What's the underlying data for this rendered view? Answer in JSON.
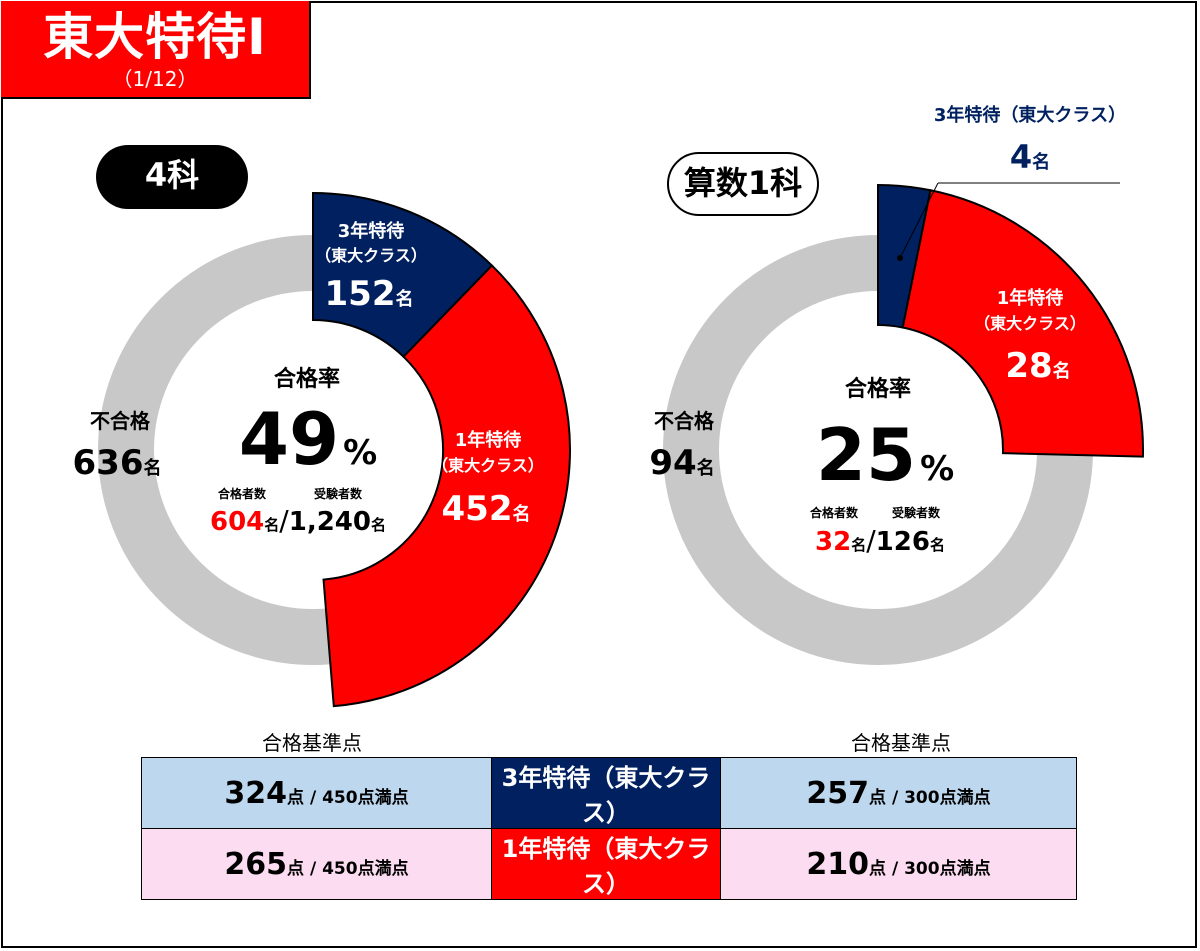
{
  "title": {
    "main": "東大特待Ⅰ",
    "sub": "（1/12）"
  },
  "colors": {
    "red": "#ff0000",
    "navy": "#002060",
    "gray": "#c8c8c8",
    "blue_cell": "#bdd7ee",
    "pink_cell": "#fcdcf0"
  },
  "chart_data": [
    {
      "type": "pie",
      "label": "4科",
      "center": {
        "title": "合格率",
        "rate": "49",
        "rate_unit": "%",
        "passers_label": "合格者数",
        "examinees_label": "受験者数",
        "passers": "604",
        "examinees": "1,240",
        "unit": "名",
        "sep": "/"
      },
      "segments": [
        {
          "name_line1": "3年特待",
          "name_line2": "（東大クラス）",
          "value": 152,
          "value_text": "152",
          "unit": "名",
          "color": "#002060"
        },
        {
          "name_line1": "1年特待",
          "name_line2": "（東大クラス）",
          "value": 452,
          "value_text": "452",
          "unit": "名",
          "color": "#ff0000"
        },
        {
          "name_line1": "不合格",
          "value": 636,
          "value_text": "636",
          "unit": "名",
          "color": "#c8c8c8"
        }
      ],
      "total": 1240
    },
    {
      "type": "pie",
      "label": "算数1科",
      "center": {
        "title": "合格率",
        "rate": "25",
        "rate_unit": "%",
        "passers_label": "合格者数",
        "examinees_label": "受験者数",
        "passers": "32",
        "examinees": "126",
        "unit": "名",
        "sep": "/"
      },
      "segments": [
        {
          "name_line1": "3年特待",
          "name_line2": "（東大クラス）",
          "value": 4,
          "value_text": "4",
          "unit": "名",
          "color": "#002060"
        },
        {
          "name_line1": "1年特待",
          "name_line2": "（東大クラス）",
          "value": 28,
          "value_text": "28",
          "unit": "名",
          "color": "#ff0000"
        },
        {
          "name_line1": "不合格",
          "value": 94,
          "value_text": "94",
          "unit": "名",
          "color": "#c8c8c8"
        }
      ],
      "total": 126
    }
  ],
  "thresholds": {
    "label_left": "合格基準点",
    "label_right": "合格基準点",
    "rows": [
      {
        "left_score": "324",
        "left_unit": "点",
        "left_max": " / 450点満点",
        "mid": "3年特待（東大クラス）",
        "right_score": "257",
        "right_unit": "点",
        "right_max": " / 300点満点"
      },
      {
        "left_score": "265",
        "left_unit": "点",
        "left_max": " / 450点満点",
        "mid": "1年特待（東大クラス）",
        "right_score": "210",
        "right_unit": "点",
        "right_max": " / 300点満点"
      }
    ]
  }
}
